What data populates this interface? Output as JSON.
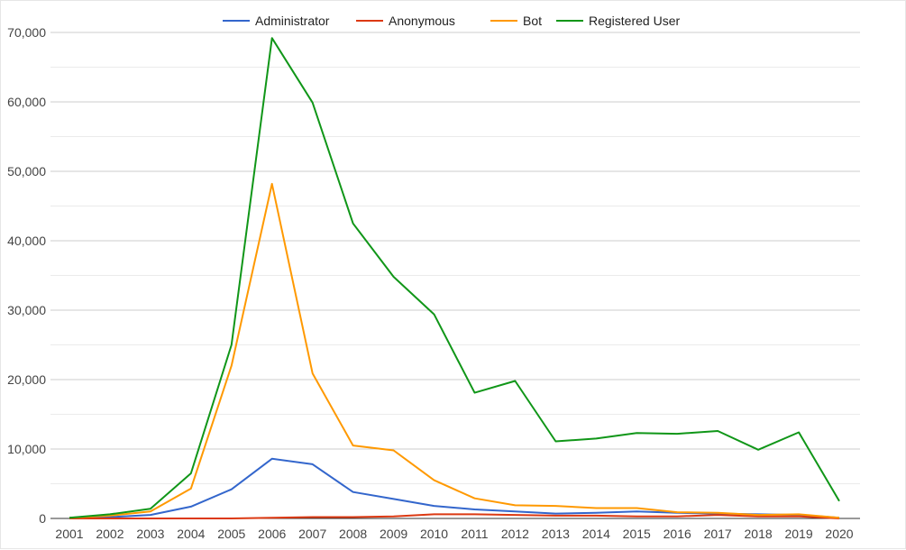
{
  "chart_data": {
    "type": "line",
    "title": "",
    "xlabel": "",
    "ylabel": "",
    "x": [
      "2001",
      "2002",
      "2003",
      "2004",
      "2005",
      "2006",
      "2007",
      "2008",
      "2009",
      "2010",
      "2011",
      "2012",
      "2013",
      "2014",
      "2015",
      "2016",
      "2017",
      "2018",
      "2019",
      "2020"
    ],
    "ylim": [
      0,
      70000
    ],
    "yticks": [
      0,
      10000,
      20000,
      30000,
      40000,
      50000,
      60000,
      70000
    ],
    "ytick_labels": [
      "0",
      "10,000",
      "20,000",
      "30,000",
      "40,000",
      "50,000",
      "60,000",
      "70,000"
    ],
    "grid": true,
    "legend_position": "top",
    "series": [
      {
        "name": "Administrator",
        "color": "#3366cc",
        "values": [
          50,
          200,
          500,
          1700,
          4200,
          8600,
          7800,
          3800,
          2800,
          1800,
          1300,
          1000,
          700,
          800,
          1000,
          800,
          700,
          600,
          500,
          100
        ]
      },
      {
        "name": "Anonymous",
        "color": "#dc3912",
        "values": [
          0,
          0,
          0,
          0,
          0,
          100,
          200,
          200,
          300,
          600,
          600,
          500,
          400,
          400,
          300,
          300,
          500,
          300,
          300,
          0
        ]
      },
      {
        "name": "Bot",
        "color": "#ff9900",
        "values": [
          100,
          400,
          1000,
          4300,
          22000,
          48200,
          20900,
          10500,
          9800,
          5500,
          2900,
          1900,
          1800,
          1500,
          1500,
          900,
          800,
          500,
          600,
          100
        ]
      },
      {
        "name": "Registered User",
        "color": "#109618",
        "values": [
          100,
          600,
          1400,
          6500,
          25000,
          69200,
          59900,
          42500,
          34800,
          29400,
          18100,
          19800,
          11100,
          11500,
          12300,
          12200,
          12600,
          9900,
          12400,
          2500
        ]
      }
    ]
  }
}
